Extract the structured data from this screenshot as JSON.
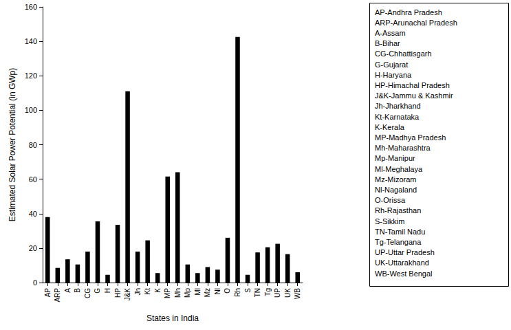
{
  "chart_data": {
    "type": "bar",
    "x_label": "States in India",
    "y_label": "Estimated Solar Power Potential (in GWp)",
    "categories": [
      "AP",
      "ARP",
      "A",
      "B",
      "CG",
      "G",
      "H",
      "HP",
      "J&K",
      "Jh",
      "Kt",
      "K",
      "MP",
      "Mh",
      "Mp",
      "Ml",
      "Mz",
      "Nl",
      "O",
      "Rh",
      "S",
      "TN",
      "Tg",
      "UP",
      "UK",
      "WB"
    ],
    "values": [
      38,
      8.5,
      13.5,
      10.5,
      18,
      35.5,
      4.5,
      33.5,
      111,
      18,
      24.5,
      5.5,
      61.5,
      64,
      10.5,
      5.5,
      9,
      7.5,
      26,
      142.5,
      4.5,
      17.5,
      20.5,
      22.5,
      16.5,
      6
    ],
    "color": "#000000",
    "ylim": [
      0,
      160
    ],
    "yticks": [
      0,
      20,
      40,
      60,
      80,
      100,
      120,
      140,
      160
    ],
    "grid": false,
    "annotations": [
      "AP-Andhra Pradesh",
      "ARP-Arunachal Pradesh",
      "A-Assam",
      "B-Bihar",
      "CG-Chhattisgarh",
      "G-Gujarat",
      "H-Haryana",
      "HP-Himachal Pradesh",
      "J&K-Jammu & Kashmir",
      "Jh-Jharkhand",
      "Kt-Karnataka",
      "K-Kerala",
      "MP-Madhya Pradesh",
      "Mh-Maharashtra",
      "Mp-Manipur",
      "Ml-Meghalaya",
      "Mz-Mizoram",
      "Nl-Nagaland",
      "O-Orissa",
      "Rh-Rajasthan",
      "S-Sikkim",
      "TN-Tamil Nadu",
      "Tg-Telangana",
      "UP-Uttar Pradesh",
      "UK-Uttarakhand",
      "WB-West Bengal"
    ]
  }
}
